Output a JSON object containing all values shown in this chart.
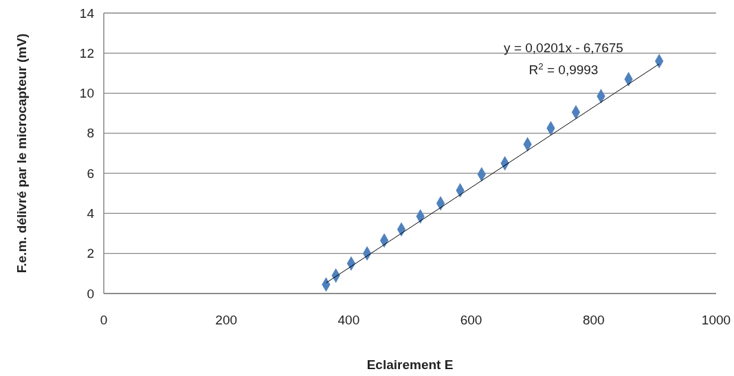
{
  "chart_data": {
    "type": "scatter",
    "xlabel": "Eclairement E",
    "ylabel": "F.e.m. délivré par le microcapteur (mV)",
    "xlim": [
      0,
      1000
    ],
    "xticks": [
      0,
      200,
      400,
      600,
      800,
      1000
    ],
    "ylim": [
      0,
      14
    ],
    "yticks": [
      0,
      2,
      4,
      6,
      8,
      10,
      12,
      14
    ],
    "grid": "y",
    "marker": "diamond",
    "annotations": [
      "y = 0,0201x - 6,7675",
      "R$^{2}$ = 0,9993"
    ],
    "series": [
      {
        "color": "#4f81bd",
        "x": [
          363,
          379,
          404,
          430,
          458,
          486,
          517,
          550,
          582,
          617,
          655,
          692,
          730,
          771,
          812,
          857,
          907
        ],
        "values": [
          0.45,
          0.9,
          1.5,
          2.0,
          2.65,
          3.2,
          3.85,
          4.5,
          5.15,
          5.95,
          6.5,
          7.45,
          8.25,
          9.05,
          9.85,
          10.7,
          11.6
        ]
      },
      {
        "type": "line",
        "color": "#000000",
        "marker": "none",
        "line_style": "solid",
        "x": [
          363,
          907
        ],
        "values": [
          0.53,
          11.46
        ]
      }
    ]
  }
}
